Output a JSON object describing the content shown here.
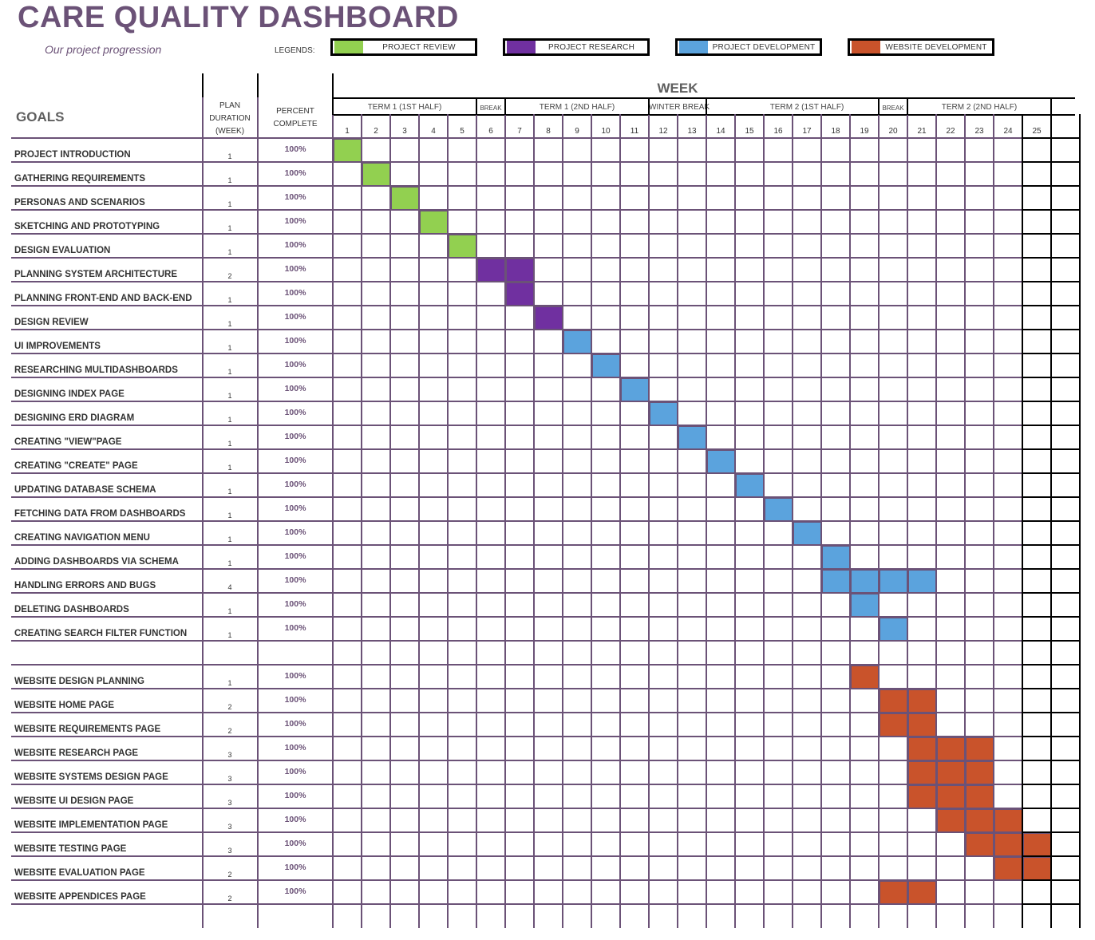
{
  "title": "CARE QUALITY DASHBOARD",
  "subtitle": "Our project progression",
  "legends_label": "LEGENDS:",
  "legend": [
    {
      "label": "PROJECT REVIEW",
      "color": "#92d050"
    },
    {
      "label": "PROJECT RESEARCH",
      "color": "#7030a0"
    },
    {
      "label": "PROJECT DEVELOPMENT",
      "color": "#5ba3dd"
    },
    {
      "label": "WEBSITE DEVELOPMENT",
      "color": "#c9532b"
    }
  ],
  "headers": {
    "week": "WEEK",
    "goals": "GOALS",
    "plan_duration": [
      "PLAN",
      "DURATION",
      "(WEEK)"
    ],
    "percent_complete": [
      "PERCENT",
      "COMPLETE"
    ]
  },
  "terms": [
    {
      "label": "TERM 1 (1ST HALF)",
      "start": 1,
      "end": 5,
      "small": false
    },
    {
      "label": "BREAK",
      "start": 6,
      "end": 6,
      "small": true
    },
    {
      "label": "TERM 1 (2ND HALF)",
      "start": 7,
      "end": 11,
      "small": false
    },
    {
      "label": "WINTER BREAK",
      "start": 12,
      "end": 13,
      "small": false
    },
    {
      "label": "TERM 2 (1ST HALF)",
      "start": 15,
      "end": 19,
      "small": false
    },
    {
      "label": "BREAK",
      "start": 20,
      "end": 20,
      "small": true
    },
    {
      "label": "TERM 2 (2ND HALF)",
      "start": 21,
      "end": 25,
      "small": false
    }
  ],
  "weeks": [
    "1",
    "2",
    "3",
    "4",
    "5",
    "6",
    "7",
    "8",
    "9",
    "10",
    "11",
    "12",
    "13",
    "14",
    "15",
    "16",
    "17",
    "18",
    "19",
    "20",
    "21",
    "22",
    "23",
    "24",
    "25"
  ],
  "rows": [
    {
      "goal": "PROJECT INTRODUCTION",
      "duration": "1",
      "percent": "100%",
      "cat": 0,
      "weeks": [
        1
      ]
    },
    {
      "goal": "GATHERING REQUIREMENTS",
      "duration": "1",
      "percent": "100%",
      "cat": 0,
      "weeks": [
        2
      ]
    },
    {
      "goal": "PERSONAS AND SCENARIOS",
      "duration": "1",
      "percent": "100%",
      "cat": 0,
      "weeks": [
        3
      ]
    },
    {
      "goal": "SKETCHING AND PROTOTYPING",
      "duration": "1",
      "percent": "100%",
      "cat": 0,
      "weeks": [
        4
      ]
    },
    {
      "goal": "DESIGN EVALUATION",
      "duration": "1",
      "percent": "100%",
      "cat": 0,
      "weeks": [
        5
      ]
    },
    {
      "goal": "PLANNING SYSTEM ARCHITECTURE",
      "duration": "2",
      "percent": "100%",
      "cat": 1,
      "weeks": [
        6,
        7
      ]
    },
    {
      "goal": "PLANNING FRONT-END AND BACK-END",
      "duration": "1",
      "percent": "100%",
      "cat": 1,
      "weeks": [
        7
      ]
    },
    {
      "goal": "DESIGN REVIEW",
      "duration": "1",
      "percent": "100%",
      "cat": 1,
      "weeks": [
        8
      ]
    },
    {
      "goal": "UI IMPROVEMENTS",
      "duration": "1",
      "percent": "100%",
      "cat": 2,
      "weeks": [
        9
      ]
    },
    {
      "goal": "RESEARCHING MULTIDASHBOARDS",
      "duration": "1",
      "percent": "100%",
      "cat": 2,
      "weeks": [
        10
      ]
    },
    {
      "goal": "DESIGNING INDEX PAGE",
      "duration": "1",
      "percent": "100%",
      "cat": 2,
      "weeks": [
        11
      ]
    },
    {
      "goal": "DESIGNING ERD DIAGRAM",
      "duration": "1",
      "percent": "100%",
      "cat": 2,
      "weeks": [
        12
      ]
    },
    {
      "goal": "CREATING \"VIEW\"PAGE",
      "duration": "1",
      "percent": "100%",
      "cat": 2,
      "weeks": [
        13
      ]
    },
    {
      "goal": "CREATING \"CREATE\" PAGE",
      "duration": "1",
      "percent": "100%",
      "cat": 2,
      "weeks": [
        14
      ]
    },
    {
      "goal": "UPDATING DATABASE SCHEMA",
      "duration": "1",
      "percent": "100%",
      "cat": 2,
      "weeks": [
        15
      ]
    },
    {
      "goal": "FETCHING DATA FROM DASHBOARDS",
      "duration": "1",
      "percent": "100%",
      "cat": 2,
      "weeks": [
        16
      ]
    },
    {
      "goal": "CREATING NAVIGATION MENU",
      "duration": "1",
      "percent": "100%",
      "cat": 2,
      "weeks": [
        17
      ]
    },
    {
      "goal": "ADDING DASHBOARDS VIA SCHEMA",
      "duration": "1",
      "percent": "100%",
      "cat": 2,
      "weeks": [
        18
      ]
    },
    {
      "goal": "HANDLING ERRORS AND BUGS",
      "duration": "4",
      "percent": "100%",
      "cat": 2,
      "weeks": [
        18,
        19,
        20,
        21
      ]
    },
    {
      "goal": "DELETING DASHBOARDS",
      "duration": "1",
      "percent": "100%",
      "cat": 2,
      "weeks": [
        19
      ]
    },
    {
      "goal": "CREATING SEARCH FILTER FUNCTION",
      "duration": "1",
      "percent": "100%",
      "cat": 2,
      "weeks": [
        20
      ]
    },
    {
      "goal": "",
      "duration": "",
      "percent": "",
      "cat": null,
      "weeks": []
    },
    {
      "goal": "WEBSITE DESIGN PLANNING",
      "duration": "1",
      "percent": "100%",
      "cat": 3,
      "weeks": [
        19
      ]
    },
    {
      "goal": "WEBSITE HOME PAGE",
      "duration": "2",
      "percent": "100%",
      "cat": 3,
      "weeks": [
        20,
        21
      ]
    },
    {
      "goal": "WEBSITE REQUIREMENTS PAGE",
      "duration": "2",
      "percent": "100%",
      "cat": 3,
      "weeks": [
        20,
        21
      ]
    },
    {
      "goal": "WEBSITE RESEARCH PAGE",
      "duration": "3",
      "percent": "100%",
      "cat": 3,
      "weeks": [
        21,
        22,
        23
      ]
    },
    {
      "goal": "WEBSITE SYSTEMS DESIGN PAGE",
      "duration": "3",
      "percent": "100%",
      "cat": 3,
      "weeks": [
        21,
        22,
        23
      ]
    },
    {
      "goal": "WEBSITE UI DESIGN PAGE",
      "duration": "3",
      "percent": "100%",
      "cat": 3,
      "weeks": [
        21,
        22,
        23
      ]
    },
    {
      "goal": "WEBSITE IMPLEMENTATION PAGE",
      "duration": "3",
      "percent": "100%",
      "cat": 3,
      "weeks": [
        22,
        23,
        24
      ]
    },
    {
      "goal": "WEBSITE TESTING PAGE",
      "duration": "3",
      "percent": "100%",
      "cat": 3,
      "weeks": [
        23,
        24,
        25
      ]
    },
    {
      "goal": "WEBSITE EVALUATION PAGE",
      "duration": "2",
      "percent": "100%",
      "cat": 3,
      "weeks": [
        24,
        25
      ]
    },
    {
      "goal": "WEBSITE APPENDICES PAGE",
      "duration": "2",
      "percent": "100%",
      "cat": 3,
      "weeks": [
        20,
        21
      ]
    }
  ]
}
